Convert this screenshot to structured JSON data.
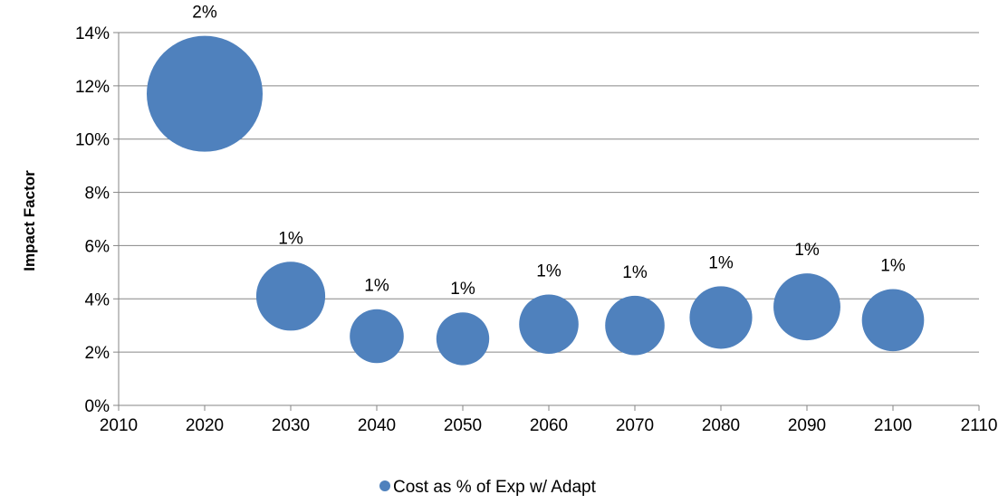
{
  "chart_data": {
    "type": "bubble",
    "title": "",
    "xlabel": "",
    "ylabel": "Impact Factor",
    "xlim": [
      2010,
      2110
    ],
    "ylim": [
      0,
      14
    ],
    "x_ticks": [
      "2010",
      "2020",
      "2030",
      "2040",
      "2050",
      "2060",
      "2070",
      "2080",
      "2090",
      "2100",
      "2110"
    ],
    "y_ticks": [
      "0%",
      "2%",
      "4%",
      "6%",
      "8%",
      "10%",
      "12%",
      "14%"
    ],
    "grid": "horizontal",
    "legend_position": "bottom",
    "series": [
      {
        "name": "Cost as % of Exp w/ Adapt",
        "color": "#4F81BD",
        "points": [
          {
            "x": 2020,
            "y": 11.7,
            "size": 2.4,
            "label": "2%"
          },
          {
            "x": 2030,
            "y": 4.1,
            "size": 0.85,
            "label": "1%"
          },
          {
            "x": 2040,
            "y": 2.6,
            "size": 0.52,
            "label": "1%"
          },
          {
            "x": 2050,
            "y": 2.5,
            "size": 0.5,
            "label": "1%"
          },
          {
            "x": 2060,
            "y": 3.05,
            "size": 0.63,
            "label": "1%"
          },
          {
            "x": 2070,
            "y": 3.0,
            "size": 0.63,
            "label": "1%"
          },
          {
            "x": 2080,
            "y": 3.3,
            "size": 0.7,
            "label": "1%"
          },
          {
            "x": 2090,
            "y": 3.7,
            "size": 0.8,
            "label": "1%"
          },
          {
            "x": 2100,
            "y": 3.2,
            "size": 0.69,
            "label": "1%"
          }
        ]
      }
    ]
  }
}
